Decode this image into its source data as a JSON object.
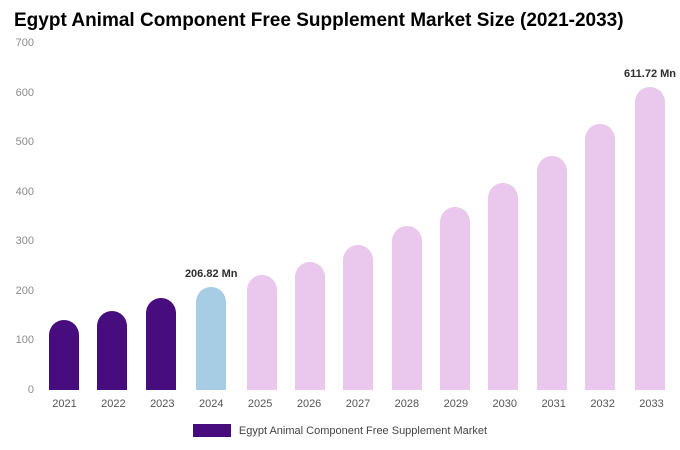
{
  "chart_data": {
    "type": "bar",
    "title": "Egypt Animal Component Free Supplement Market Size (2021-2033)",
    "categories": [
      "2021",
      "2022",
      "2023",
      "2024",
      "2025",
      "2026",
      "2027",
      "2028",
      "2029",
      "2030",
      "2031",
      "2032",
      "2033"
    ],
    "values": [
      141,
      160,
      185,
      206.82,
      232,
      258,
      293,
      330,
      370,
      417,
      472,
      537,
      611.72
    ],
    "point_labels": [
      "",
      "",
      "",
      "206.82 Mn",
      "",
      "",
      "",
      "",
      "",
      "",
      "",
      "",
      "611.72 Mn"
    ],
    "colors": [
      "#470D7E",
      "#470D7E",
      "#470D7E",
      "#A6CDE3",
      "#EAC7EC",
      "#EAC7EC",
      "#EAC7EC",
      "#EAC7EC",
      "#EAC7EC",
      "#EAC7EC",
      "#EAC7EC",
      "#EAC7EC",
      "#EAC7EC"
    ],
    "xlabel": "",
    "ylabel": "",
    "ylim": [
      0,
      700
    ],
    "yticks": [
      0,
      100,
      200,
      300,
      400,
      500,
      600,
      700
    ],
    "grid": false,
    "legend_position": "bottom",
    "legend": [
      {
        "label": "Egypt Animal Component Free Supplement Market",
        "color": "#470D7E"
      }
    ]
  }
}
